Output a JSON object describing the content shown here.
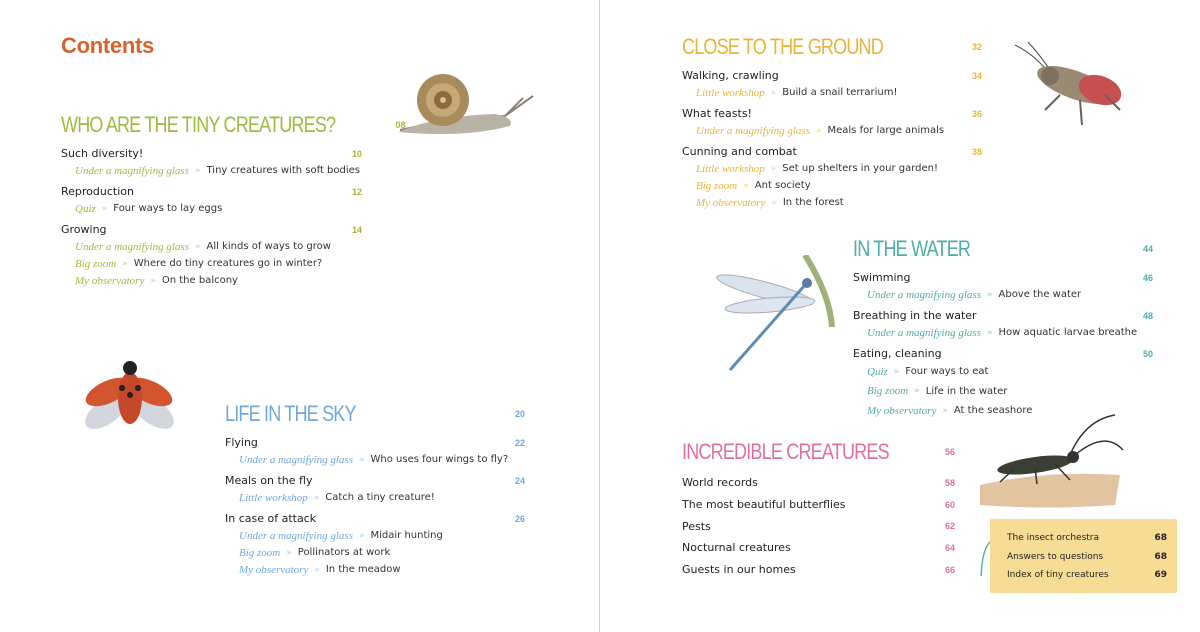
{
  "title": "Contents",
  "colors": {
    "title": "#d9622b",
    "green": "#9dbb3f",
    "blue": "#6fa8dc",
    "yellow": "#e8b53a",
    "teal": "#4fada5",
    "pink": "#e06fa0",
    "tag": "#f7dc95"
  },
  "sections": [
    {
      "id": "green",
      "title": "Who are the tiny creatures?",
      "page": "08",
      "entries": [
        {
          "title": "Such diversity!",
          "page": "10",
          "subs": [
            {
              "label": "Under a magnifying glass",
              "text": "Tiny creatures with soft bodies"
            }
          ]
        },
        {
          "title": "Reproduction",
          "page": "12",
          "subs": [
            {
              "label": "Quiz",
              "text": "Four ways to lay eggs"
            }
          ]
        },
        {
          "title": "Growing",
          "page": "14",
          "subs": [
            {
              "label": "Under a magnifying glass",
              "text": "All kinds of ways to grow"
            },
            {
              "label": "Big zoom",
              "text": "Where do tiny creatures go in winter?"
            },
            {
              "label": "My observatory",
              "text": "On the balcony"
            }
          ]
        }
      ]
    },
    {
      "id": "blue",
      "title": "Life in the sky",
      "page": "20",
      "entries": [
        {
          "title": "Flying",
          "page": "22",
          "subs": [
            {
              "label": "Under a magnifying glass",
              "text": "Who uses four wings to fly?"
            }
          ]
        },
        {
          "title": "Meals on the fly",
          "page": "24",
          "subs": [
            {
              "label": "Little workshop",
              "text": "Catch a tiny creature!"
            }
          ]
        },
        {
          "title": "In case of attack",
          "page": "26",
          "subs": [
            {
              "label": "Under a magnifying glass",
              "text": "Midair hunting"
            },
            {
              "label": "Big zoom",
              "text": "Pollinators at work"
            },
            {
              "label": "My observatory",
              "text": "In the meadow"
            }
          ]
        }
      ]
    },
    {
      "id": "yellow",
      "title": "Close to the ground",
      "page": "32",
      "entries": [
        {
          "title": "Walking, crawling",
          "page": "34",
          "subs": [
            {
              "label": "Little workshop",
              "text": "Build a snail terrarium!"
            }
          ]
        },
        {
          "title": "What feasts!",
          "page": "36",
          "subs": [
            {
              "label": "Under a magnifying glass",
              "text": "Meals for large animals"
            }
          ]
        },
        {
          "title": "Cunning and combat",
          "page": "38",
          "subs": [
            {
              "label": "Little workshop",
              "text": "Set up shelters in your garden!"
            },
            {
              "label": "Big zoom",
              "text": "Ant society"
            },
            {
              "label": "My observatory",
              "text": "In the forest"
            }
          ]
        }
      ]
    },
    {
      "id": "teal",
      "title": "In the water",
      "page": "44",
      "entries": [
        {
          "title": "Swimming",
          "page": "46",
          "subs": [
            {
              "label": "Under a magnifying glass",
              "text": "Above the water"
            }
          ]
        },
        {
          "title": "Breathing in the water",
          "page": "48",
          "subs": [
            {
              "label": "Under a magnifying glass",
              "text": "How aquatic larvae breathe"
            }
          ]
        },
        {
          "title": "Eating, cleaning",
          "page": "50",
          "subs": [
            {
              "label": "Quiz",
              "text": "Four ways to eat"
            },
            {
              "label": "Big zoom",
              "text": "Life in the water"
            },
            {
              "label": "My observatory",
              "text": "At the seashore"
            }
          ]
        }
      ]
    },
    {
      "id": "pink",
      "title": "Incredible creatures",
      "page": "56",
      "entries": [
        {
          "title": "World records",
          "page": "58",
          "subs": []
        },
        {
          "title": "The most beautiful butterflies",
          "page": "60",
          "subs": []
        },
        {
          "title": "Pests",
          "page": "62",
          "subs": []
        },
        {
          "title": "Nocturnal creatures",
          "page": "64",
          "subs": []
        },
        {
          "title": "Guests in our homes",
          "page": "66",
          "subs": []
        }
      ]
    }
  ],
  "tag": [
    {
      "title": "The insect orchestra",
      "page": "68"
    },
    {
      "title": "Answers to questions",
      "page": "68"
    },
    {
      "title": "Index of tiny creatures",
      "page": "69"
    }
  ]
}
